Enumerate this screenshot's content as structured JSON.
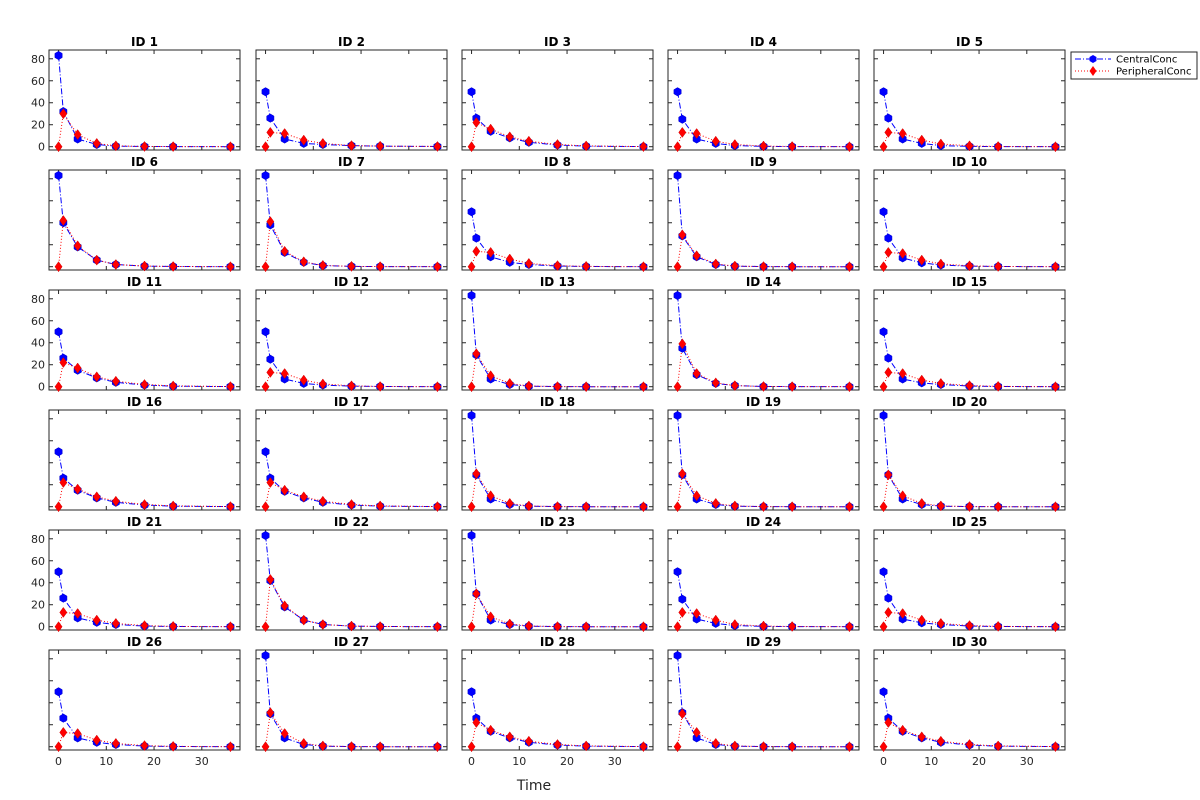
{
  "chart_data": {
    "type": "line",
    "xlabel": "Time",
    "ylabel": "",
    "xlim": [
      -2,
      38
    ],
    "ylim": [
      -3,
      88
    ],
    "x_ticks": [
      0,
      10,
      20,
      30
    ],
    "y_ticks": [
      0,
      20,
      40,
      60,
      80
    ],
    "grid": false,
    "legend_position": "top-right",
    "x": [
      0,
      1,
      4,
      8,
      12,
      18,
      24,
      36
    ],
    "series_styles": {
      "CentralConc": {
        "color": "#0000ff",
        "line": "dash-dot",
        "marker": "hexagon"
      },
      "PeripheralConc": {
        "color": "#ff0000",
        "line": "dotted",
        "marker": "diamond"
      }
    },
    "panels": [
      {
        "title": "ID 1",
        "central": [
          83,
          32,
          7,
          2,
          0.5,
          0.2,
          0.1,
          0
        ],
        "peripheral": [
          0,
          30,
          11,
          3,
          0.8,
          0.2,
          0.1,
          0
        ]
      },
      {
        "title": "ID 2",
        "central": [
          50,
          26,
          7,
          3,
          2,
          1,
          0.5,
          0.2
        ],
        "peripheral": [
          0,
          13,
          12,
          6,
          3,
          1,
          0.5,
          0.2
        ]
      },
      {
        "title": "ID 3",
        "central": [
          50,
          26,
          14,
          8,
          4,
          1.5,
          0.5,
          0.1
        ],
        "peripheral": [
          0,
          22,
          16,
          9,
          5,
          2,
          0.7,
          0.1
        ]
      },
      {
        "title": "ID 4",
        "central": [
          50,
          25,
          7,
          3,
          1,
          0.3,
          0.1,
          0
        ],
        "peripheral": [
          0,
          13,
          12,
          5,
          2,
          0.6,
          0.2,
          0
        ]
      },
      {
        "title": "ID 5",
        "central": [
          50,
          26,
          7,
          3,
          1,
          0.3,
          0.1,
          0
        ],
        "peripheral": [
          0,
          13,
          12,
          6,
          2.5,
          0.8,
          0.2,
          0
        ]
      },
      {
        "title": "ID 6",
        "central": [
          83,
          40,
          18,
          6,
          2,
          0.5,
          0.2,
          0
        ],
        "peripheral": [
          0,
          42,
          19,
          6,
          2,
          0.6,
          0.2,
          0
        ]
      },
      {
        "title": "ID 7",
        "central": [
          83,
          38,
          13,
          4,
          1,
          0.3,
          0.1,
          0
        ],
        "peripheral": [
          0,
          41,
          14,
          4.5,
          1.2,
          0.3,
          0.1,
          0
        ]
      },
      {
        "title": "ID 8",
        "central": [
          50,
          26,
          9,
          4,
          2,
          0.6,
          0.2,
          0
        ],
        "peripheral": [
          0,
          14,
          13,
          7,
          3,
          1,
          0.3,
          0
        ]
      },
      {
        "title": "ID 9",
        "central": [
          83,
          28,
          9,
          2,
          0.5,
          0.1,
          0,
          0
        ],
        "peripheral": [
          0,
          29,
          10,
          2.5,
          0.6,
          0.1,
          0,
          0
        ]
      },
      {
        "title": "ID 10",
        "central": [
          50,
          26,
          8,
          3.5,
          1.5,
          0.5,
          0.2,
          0
        ],
        "peripheral": [
          0,
          13,
          12,
          6,
          2.5,
          0.8,
          0.2,
          0
        ]
      },
      {
        "title": "ID 11",
        "central": [
          50,
          26,
          15,
          8,
          4,
          1.5,
          0.5,
          0.1
        ],
        "peripheral": [
          0,
          22,
          17,
          9,
          5,
          2,
          0.7,
          0.1
        ]
      },
      {
        "title": "ID 12",
        "central": [
          50,
          25,
          7,
          3,
          1.5,
          0.5,
          0.2,
          0
        ],
        "peripheral": [
          0,
          13,
          12,
          6,
          2.5,
          0.8,
          0.2,
          0
        ]
      },
      {
        "title": "ID 13",
        "central": [
          83,
          29,
          7,
          2,
          0.5,
          0.1,
          0,
          0
        ],
        "peripheral": [
          0,
          30,
          10,
          3,
          0.7,
          0.1,
          0,
          0
        ]
      },
      {
        "title": "ID 14",
        "central": [
          83,
          35,
          11,
          3,
          1,
          0.2,
          0.1,
          0
        ],
        "peripheral": [
          0,
          39,
          12,
          3.5,
          1,
          0.2,
          0.1,
          0
        ]
      },
      {
        "title": "ID 15",
        "central": [
          50,
          26,
          7,
          3.5,
          2,
          0.6,
          0.2,
          0
        ],
        "peripheral": [
          0,
          13,
          12,
          6,
          3,
          1,
          0.3,
          0
        ]
      },
      {
        "title": "ID 16",
        "central": [
          50,
          26,
          15,
          8,
          4,
          1.5,
          0.5,
          0.1
        ],
        "peripheral": [
          0,
          22,
          16,
          9,
          5,
          2,
          0.7,
          0.1
        ]
      },
      {
        "title": "ID 17",
        "central": [
          50,
          26,
          14,
          8,
          4,
          1.5,
          0.5,
          0.1
        ],
        "peripheral": [
          0,
          22,
          15,
          9,
          5,
          2,
          0.7,
          0.1
        ]
      },
      {
        "title": "ID 18",
        "central": [
          83,
          29,
          7,
          2,
          0.5,
          0.1,
          0,
          0
        ],
        "peripheral": [
          0,
          30,
          10,
          3,
          0.7,
          0.1,
          0,
          0
        ]
      },
      {
        "title": "ID 19",
        "central": [
          83,
          29,
          7,
          2,
          0.5,
          0.1,
          0,
          0
        ],
        "peripheral": [
          0,
          30,
          10,
          3,
          0.7,
          0.1,
          0,
          0
        ]
      },
      {
        "title": "ID 20",
        "central": [
          83,
          29,
          7,
          2,
          0.5,
          0.1,
          0,
          0
        ],
        "peripheral": [
          0,
          29,
          10,
          3,
          0.7,
          0.1,
          0,
          0
        ]
      },
      {
        "title": "ID 21",
        "central": [
          50,
          26,
          8,
          4,
          2,
          0.6,
          0.2,
          0
        ],
        "peripheral": [
          0,
          13,
          12,
          6,
          3,
          1,
          0.3,
          0
        ]
      },
      {
        "title": "ID 22",
        "central": [
          83,
          42,
          18,
          6,
          2,
          0.5,
          0.2,
          0
        ],
        "peripheral": [
          0,
          43,
          19,
          6,
          2,
          0.6,
          0.2,
          0
        ]
      },
      {
        "title": "ID 23",
        "central": [
          83,
          30,
          6,
          2,
          0.5,
          0.1,
          0,
          0
        ],
        "peripheral": [
          0,
          30,
          9,
          2.5,
          0.7,
          0.1,
          0,
          0
        ]
      },
      {
        "title": "ID 24",
        "central": [
          50,
          25,
          7,
          3,
          1,
          0.3,
          0.1,
          0
        ],
        "peripheral": [
          0,
          13,
          12,
          6,
          2,
          0.6,
          0.2,
          0
        ]
      },
      {
        "title": "ID 25",
        "central": [
          50,
          26,
          7,
          3.5,
          2,
          0.6,
          0.2,
          0
        ],
        "peripheral": [
          0,
          13,
          12,
          6,
          3,
          1,
          0.3,
          0
        ]
      },
      {
        "title": "ID 26",
        "central": [
          50,
          26,
          8,
          4,
          2,
          0.6,
          0.2,
          0
        ],
        "peripheral": [
          0,
          13,
          12,
          6,
          3,
          1,
          0.3,
          0
        ]
      },
      {
        "title": "ID 27",
        "central": [
          83,
          30,
          8,
          2,
          0.5,
          0.1,
          0,
          0
        ],
        "peripheral": [
          0,
          31,
          12,
          3,
          0.7,
          0.1,
          0,
          0
        ]
      },
      {
        "title": "ID 28",
        "central": [
          50,
          26,
          14,
          8,
          4,
          1.5,
          0.5,
          0.1
        ],
        "peripheral": [
          0,
          22,
          15,
          9,
          5,
          2,
          0.7,
          0.1
        ]
      },
      {
        "title": "ID 29",
        "central": [
          83,
          31,
          8,
          2,
          0.5,
          0.1,
          0,
          0
        ],
        "peripheral": [
          0,
          30,
          13,
          3,
          0.7,
          0.1,
          0,
          0
        ]
      },
      {
        "title": "ID 30",
        "central": [
          50,
          26,
          14,
          8,
          4,
          1.5,
          0.5,
          0.1
        ],
        "peripheral": [
          0,
          22,
          15,
          9,
          5,
          2,
          0.7,
          0.1
        ]
      }
    ],
    "legend": [
      "CentralConc",
      "PeripheralConc"
    ]
  }
}
